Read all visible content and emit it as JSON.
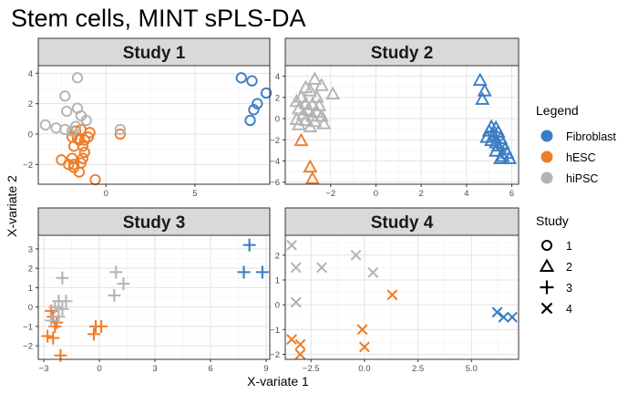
{
  "title": "Stem cells, MINT sPLS-DA",
  "xlabel": "X-variate 1",
  "ylabel": "X-variate 2",
  "legend": {
    "title": "Legend",
    "items": [
      {
        "label": "Fibroblast",
        "color": "#3a7dc4"
      },
      {
        "label": "hESC",
        "color": "#ee7d2b"
      },
      {
        "label": "hiPSC",
        "color": "#b4b4b4"
      }
    ]
  },
  "study_legend": {
    "title": "Study",
    "items": [
      {
        "label": "1",
        "shape": "circle"
      },
      {
        "label": "2",
        "shape": "triangle"
      },
      {
        "label": "3",
        "shape": "plus"
      },
      {
        "label": "4",
        "shape": "cross"
      }
    ]
  },
  "chart_data": [
    {
      "type": "scatter",
      "title": "Study 1",
      "shape": "circle",
      "xlim": [
        -3.8,
        9.2
      ],
      "ylim": [
        -3.3,
        4.5
      ],
      "xticks": [
        0,
        5
      ],
      "yticks": [
        -2,
        0,
        2,
        4
      ],
      "series": [
        {
          "name": "Fibroblast",
          "points": [
            [
              7.6,
              3.7
            ],
            [
              8.2,
              3.5
            ],
            [
              9.0,
              2.7
            ],
            [
              8.5,
              2.0
            ],
            [
              8.3,
              1.6
            ],
            [
              8.1,
              0.9
            ]
          ]
        },
        {
          "name": "hESC",
          "points": [
            [
              -1.4,
              0.3
            ],
            [
              -1.7,
              0.2
            ],
            [
              -1.9,
              -0.2
            ],
            [
              -1.6,
              -0.3
            ],
            [
              -1.5,
              -0.4
            ],
            [
              -1.2,
              -0.4
            ],
            [
              -1.3,
              -0.8
            ],
            [
              -1.8,
              -0.8
            ],
            [
              -1.2,
              -1.2
            ],
            [
              -0.9,
              0.1
            ],
            [
              -1.0,
              -0.2
            ],
            [
              0.8,
              0.0
            ],
            [
              -2.5,
              -1.7
            ],
            [
              -2.1,
              -2.0
            ],
            [
              -1.8,
              -2.0
            ],
            [
              -1.4,
              -1.9
            ],
            [
              -1.8,
              -2.2
            ],
            [
              -1.5,
              -2.5
            ],
            [
              -0.6,
              -3.0
            ],
            [
              -1.3,
              -1.6
            ],
            [
              -1.9,
              -1.6
            ]
          ]
        },
        {
          "name": "hiPSC",
          "points": [
            [
              -1.6,
              3.7
            ],
            [
              -2.3,
              2.5
            ],
            [
              -1.6,
              1.7
            ],
            [
              -2.2,
              1.5
            ],
            [
              -1.4,
              1.2
            ],
            [
              -1.1,
              0.9
            ],
            [
              -3.4,
              0.6
            ],
            [
              -2.8,
              0.4
            ],
            [
              -2.3,
              0.3
            ],
            [
              -1.7,
              0.5
            ],
            [
              0.8,
              0.3
            ],
            [
              -1.9,
              0.2
            ]
          ]
        }
      ]
    },
    {
      "type": "scatter",
      "title": "Study 2",
      "shape": "triangle",
      "xlim": [
        -4.0,
        6.3
      ],
      "ylim": [
        -6.2,
        5.0
      ],
      "xticks": [
        -2,
        0,
        2,
        4,
        6
      ],
      "yticks": [
        -6,
        -4,
        -2,
        0,
        2,
        4
      ],
      "series": [
        {
          "name": "Fibroblast",
          "points": [
            [
              4.6,
              3.6
            ],
            [
              4.8,
              2.6
            ],
            [
              4.7,
              1.8
            ],
            [
              5.1,
              -0.8
            ],
            [
              5.3,
              -0.9
            ],
            [
              5.0,
              -1.2
            ],
            [
              5.4,
              -1.3
            ],
            [
              5.2,
              -1.6
            ],
            [
              4.9,
              -1.8
            ],
            [
              5.5,
              -1.9
            ],
            [
              5.1,
              -2.1
            ],
            [
              5.3,
              -2.3
            ],
            [
              5.6,
              -2.4
            ],
            [
              5.4,
              -2.6
            ],
            [
              5.7,
              -2.9
            ],
            [
              5.3,
              -3.1
            ],
            [
              5.8,
              -3.3
            ],
            [
              5.6,
              -3.6
            ],
            [
              5.9,
              -3.8
            ],
            [
              5.5,
              -3.8
            ]
          ]
        },
        {
          "name": "hESC",
          "points": [
            [
              -3.3,
              -2.1
            ],
            [
              -2.9,
              -4.6
            ],
            [
              -2.8,
              -5.7
            ]
          ]
        },
        {
          "name": "hiPSC",
          "points": [
            [
              -2.7,
              3.7
            ],
            [
              -2.4,
              3.1
            ],
            [
              -3.1,
              2.9
            ],
            [
              -2.9,
              2.6
            ],
            [
              -1.9,
              2.3
            ],
            [
              -3.3,
              2.0
            ],
            [
              -2.6,
              2.0
            ],
            [
              -3.5,
              1.6
            ],
            [
              -3.1,
              1.4
            ],
            [
              -2.8,
              1.3
            ],
            [
              -2.5,
              1.2
            ],
            [
              -3.4,
              0.9
            ],
            [
              -3.0,
              0.8
            ],
            [
              -2.6,
              0.6
            ],
            [
              -3.2,
              0.4
            ],
            [
              -2.8,
              0.2
            ],
            [
              -2.4,
              0.2
            ],
            [
              -3.5,
              -0.1
            ],
            [
              -3.1,
              -0.2
            ],
            [
              -2.7,
              -0.3
            ],
            [
              -2.3,
              -0.5
            ],
            [
              -3.4,
              -0.6
            ],
            [
              -2.9,
              -0.8
            ]
          ]
        }
      ]
    },
    {
      "type": "scatter",
      "title": "Study 3",
      "shape": "plus",
      "xlim": [
        -3.3,
        9.2
      ],
      "ylim": [
        -2.7,
        3.7
      ],
      "xticks": [
        -3,
        0,
        3,
        6,
        9
      ],
      "yticks": [
        -2,
        -1,
        0,
        1,
        2,
        3
      ],
      "series": [
        {
          "name": "Fibroblast",
          "points": [
            [
              8.1,
              3.2
            ],
            [
              7.8,
              1.8
            ],
            [
              8.8,
              1.8
            ]
          ]
        },
        {
          "name": "hESC",
          "points": [
            [
              -2.6,
              -0.2
            ],
            [
              -2.5,
              -0.5
            ],
            [
              -2.3,
              -0.8
            ],
            [
              -2.4,
              -1.0
            ],
            [
              -2.8,
              -1.5
            ],
            [
              -2.5,
              -1.6
            ],
            [
              -2.1,
              -2.5
            ],
            [
              -0.2,
              -1.0
            ],
            [
              0.1,
              -1.0
            ],
            [
              -0.3,
              -1.4
            ]
          ]
        },
        {
          "name": "hiPSC",
          "points": [
            [
              -2.0,
              1.5
            ],
            [
              0.9,
              1.8
            ],
            [
              1.3,
              1.2
            ],
            [
              0.8,
              0.6
            ],
            [
              -2.2,
              0.3
            ],
            [
              -1.8,
              0.3
            ],
            [
              -2.4,
              0.0
            ],
            [
              -2.0,
              -0.1
            ],
            [
              -2.6,
              -0.7
            ],
            [
              -2.2,
              -0.5
            ]
          ]
        }
      ]
    },
    {
      "type": "scatter",
      "title": "Study 4",
      "shape": "cross",
      "xlim": [
        -3.7,
        7.2
      ],
      "ylim": [
        -2.2,
        2.8
      ],
      "xticks": [
        -2.5,
        0.0,
        2.5,
        5.0
      ],
      "yticks": [
        -2,
        -1,
        0,
        1,
        2
      ],
      "series": [
        {
          "name": "Fibroblast",
          "points": [
            [
              6.2,
              -0.3
            ],
            [
              6.5,
              -0.5
            ],
            [
              6.9,
              -0.5
            ]
          ]
        },
        {
          "name": "hESC",
          "points": [
            [
              1.3,
              0.4
            ],
            [
              -0.1,
              -1.0
            ],
            [
              0.0,
              -1.7
            ],
            [
              -3.4,
              -1.4
            ],
            [
              -3.0,
              -1.6
            ],
            [
              -3.0,
              -2.0
            ]
          ]
        },
        {
          "name": "hiPSC",
          "points": [
            [
              -3.4,
              2.4
            ],
            [
              -0.4,
              2.0
            ],
            [
              -3.2,
              1.5
            ],
            [
              -2.0,
              1.5
            ],
            [
              0.4,
              1.3
            ],
            [
              -3.2,
              0.1
            ]
          ]
        }
      ]
    }
  ]
}
